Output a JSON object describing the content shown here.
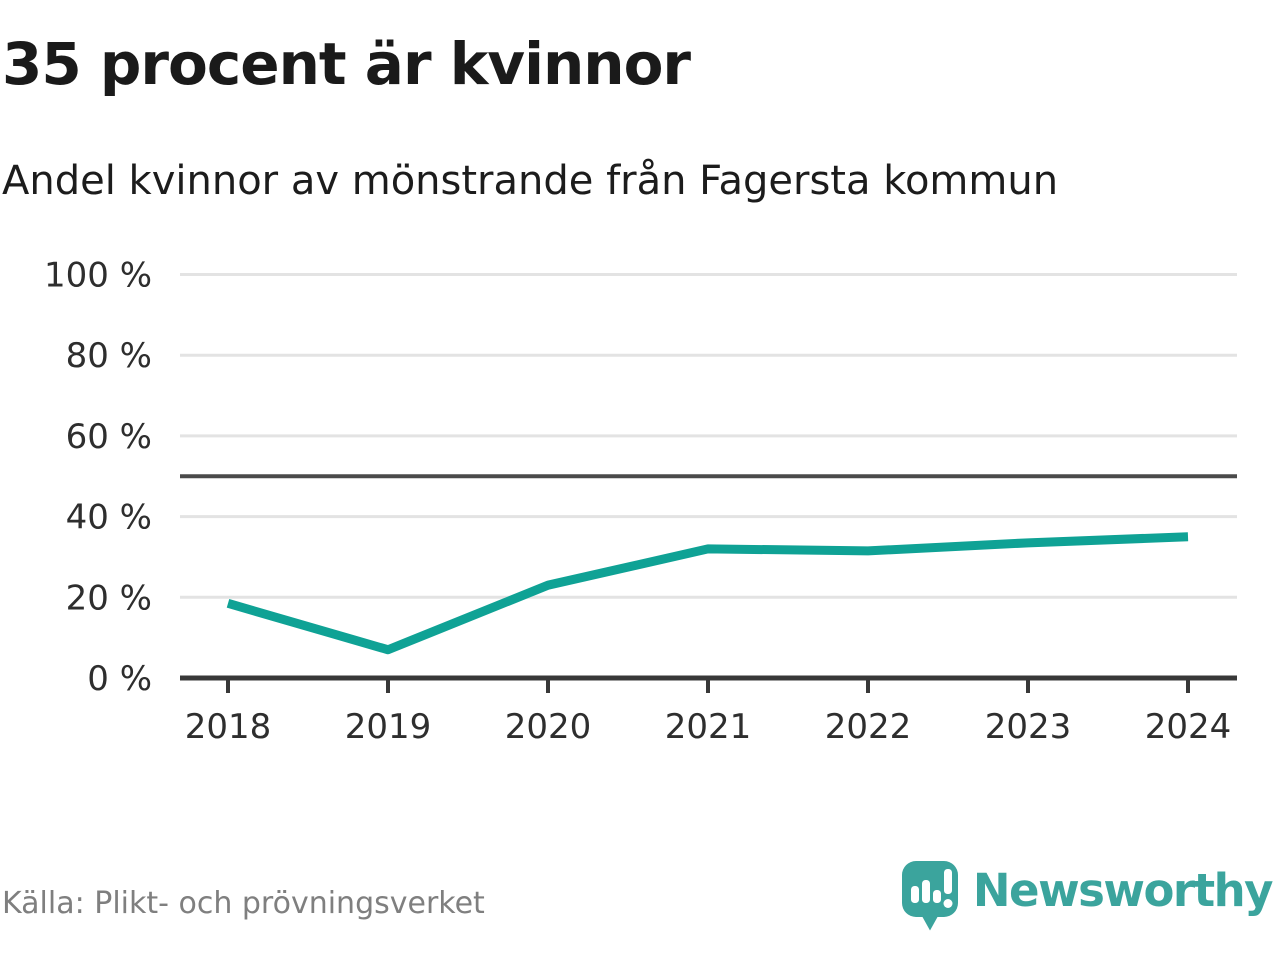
{
  "header": {
    "title": "35 procent är kvinnor",
    "subtitle": "Andel kvinnor av mönstrande från Fagersta kommun"
  },
  "chart_data": {
    "type": "line",
    "title": "35 procent är kvinnor",
    "subtitle": "Andel kvinnor av mönstrande från Fagersta kommun",
    "categories": [
      "2018",
      "2019",
      "2020",
      "2021",
      "2022",
      "2023",
      "2024"
    ],
    "series": [
      {
        "name": "Andel kvinnor av mönstrande",
        "values": [
          18.5,
          7,
          23,
          32,
          31.5,
          33.5,
          35
        ]
      }
    ],
    "unit": "%",
    "ylim": [
      0,
      100
    ],
    "y_ticks": [
      0,
      20,
      40,
      60,
      80,
      100
    ],
    "y_tick_labels": [
      "0 %",
      "20 %",
      "40 %",
      "60 %",
      "80 %",
      "100 %"
    ],
    "reference_line": 50,
    "grid": true,
    "legend_position": "none",
    "line_color": "#0fa295"
  },
  "footer": {
    "source": "Källa: Plikt- och prövningsverket",
    "brand": "Newsworthy"
  },
  "colors": {
    "accent_teal": "#0fa295",
    "logo_teal": "#3ba49d",
    "grid_gray": "#e3e3e3",
    "reference_gray": "#4a4a4a",
    "axis_dark": "#383838",
    "tick_text": "#2e2e2e",
    "text_dark": "#1a1a1a",
    "source_gray": "#7f7f7f"
  }
}
